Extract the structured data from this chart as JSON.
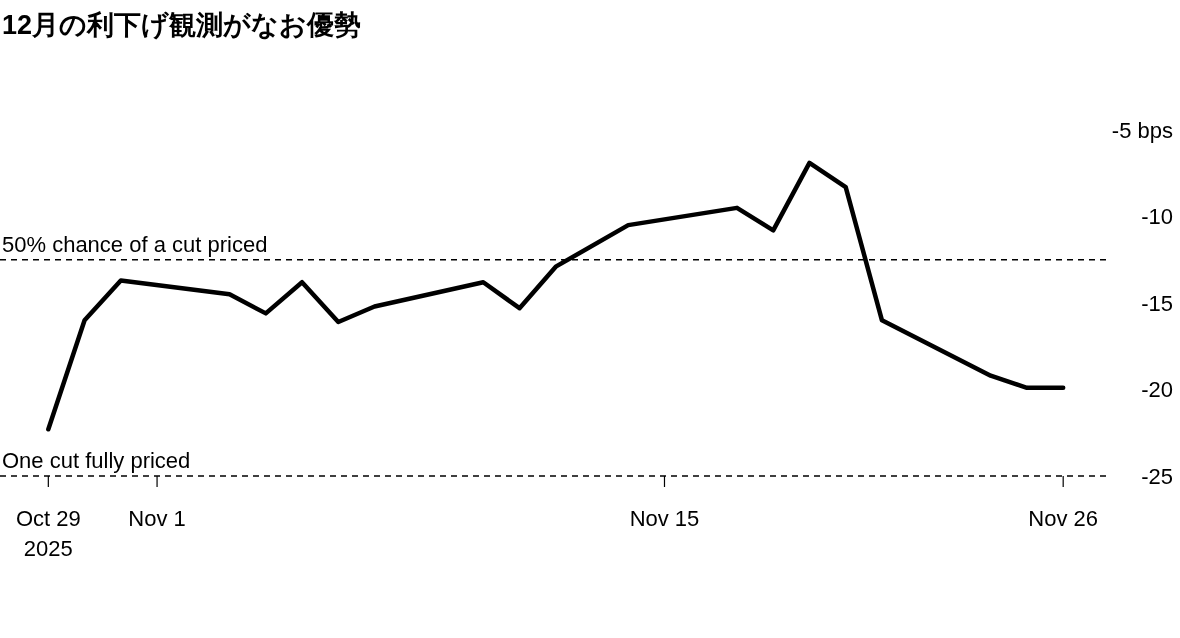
{
  "chart_data": {
    "type": "line",
    "title": "12月の利下げ観測がなお優勢",
    "x": [
      "2025-10-29",
      "2025-10-30",
      "2025-10-31",
      "2025-11-03",
      "2025-11-04",
      "2025-11-05",
      "2025-11-06",
      "2025-11-07",
      "2025-11-10",
      "2025-11-11",
      "2025-11-12",
      "2025-11-14",
      "2025-11-17",
      "2025-11-18",
      "2025-11-19",
      "2025-11-20",
      "2025-11-21",
      "2025-11-24",
      "2025-11-25",
      "2025-11-26"
    ],
    "series": [
      {
        "color": "#000000",
        "values": [
          -22.3,
          -16.0,
          -13.7,
          -14.5,
          -15.6,
          -13.8,
          -16.1,
          -15.2,
          -13.8,
          -15.3,
          -12.9,
          -10.5,
          -9.5,
          -10.8,
          -6.9,
          -8.3,
          -16.0,
          -19.2,
          -19.9,
          -19.9
        ]
      }
    ],
    "xlim": [
      "2025-10-27T16:00",
      "2025-11-27T07:00"
    ],
    "xticks": [
      {
        "value": "2025-10-29",
        "label": "Oct 29\n2025"
      },
      {
        "value": "2025-11-01",
        "label": "Nov 1"
      },
      {
        "value": "2025-11-15",
        "label": "Nov 15"
      },
      {
        "value": "2025-11-26",
        "label": "Nov 26"
      }
    ],
    "ylim": [
      -25,
      -5
    ],
    "yticks": [
      {
        "value": -5,
        "label": "-5 bps"
      },
      -10,
      -15,
      -20,
      -25
    ],
    "ref_lines": [
      {
        "axis": "y",
        "value": -12.5,
        "label": "50% chance of a cut priced",
        "line_style": "dashed"
      },
      {
        "axis": "y",
        "value": -25,
        "label": "One cut fully priced",
        "line_style": "dashed"
      }
    ],
    "grid": false,
    "marker": "none",
    "line_style": "solid"
  }
}
